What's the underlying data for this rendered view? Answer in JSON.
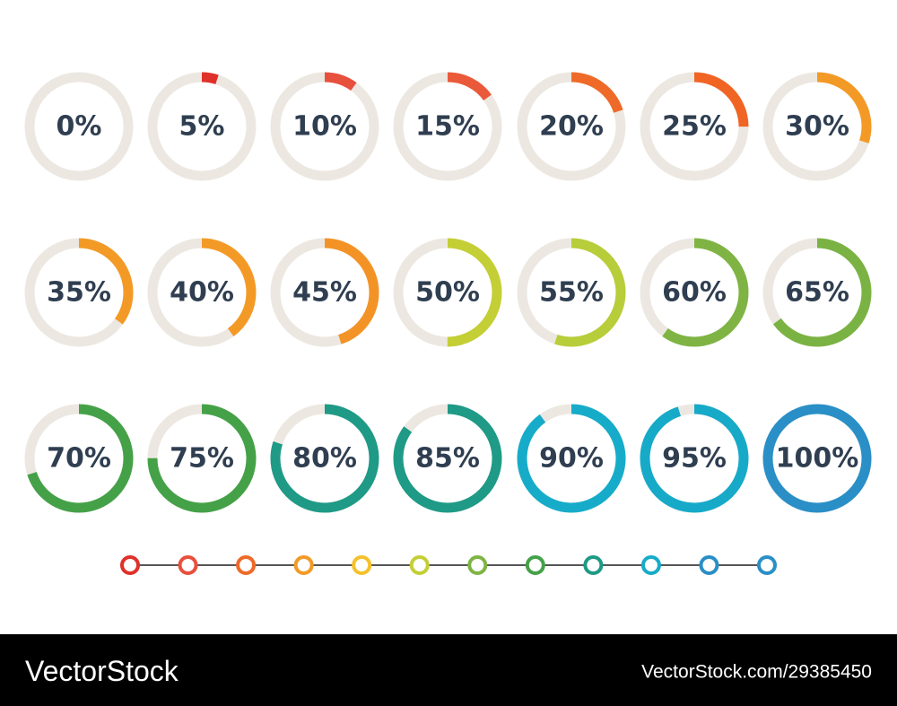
{
  "rings": [
    {
      "value": 0,
      "label": "0%",
      "color": "#e03a2e"
    },
    {
      "value": 5,
      "label": "5%",
      "color": "#e0302a"
    },
    {
      "value": 10,
      "label": "10%",
      "color": "#e8503e"
    },
    {
      "value": 15,
      "label": "15%",
      "color": "#ea5a3a"
    },
    {
      "value": 20,
      "label": "20%",
      "color": "#ef6a28"
    },
    {
      "value": 25,
      "label": "25%",
      "color": "#f06524"
    },
    {
      "value": 30,
      "label": "30%",
      "color": "#f39a26"
    },
    {
      "value": 35,
      "label": "35%",
      "color": "#f39a26"
    },
    {
      "value": 40,
      "label": "40%",
      "color": "#f39a26"
    },
    {
      "value": 45,
      "label": "45%",
      "color": "#f39326"
    },
    {
      "value": 50,
      "label": "50%",
      "color": "#c3cf35"
    },
    {
      "value": 55,
      "label": "55%",
      "color": "#b8cd3a"
    },
    {
      "value": 60,
      "label": "60%",
      "color": "#7fb444"
    },
    {
      "value": 65,
      "label": "65%",
      "color": "#7ab343"
    },
    {
      "value": 70,
      "label": "70%",
      "color": "#45a148"
    },
    {
      "value": 75,
      "label": "75%",
      "color": "#45a148"
    },
    {
      "value": 80,
      "label": "80%",
      "color": "#1f9a86"
    },
    {
      "value": 85,
      "label": "85%",
      "color": "#1f9a86"
    },
    {
      "value": 90,
      "label": "90%",
      "color": "#16acc9"
    },
    {
      "value": 95,
      "label": "95%",
      "color": "#16aac8"
    },
    {
      "value": 100,
      "label": "100%",
      "color": "#2a8fc6"
    }
  ],
  "palette": [
    "#e0302a",
    "#e8503e",
    "#ef6a28",
    "#f39a26",
    "#f5c02a",
    "#c3cf35",
    "#7fb444",
    "#45a148",
    "#1f9a86",
    "#16acc9",
    "#2a8fc6",
    "#2a8fc6"
  ],
  "footer": {
    "brand": "VectorStock",
    "id": "VectorStock.com/29385450"
  }
}
